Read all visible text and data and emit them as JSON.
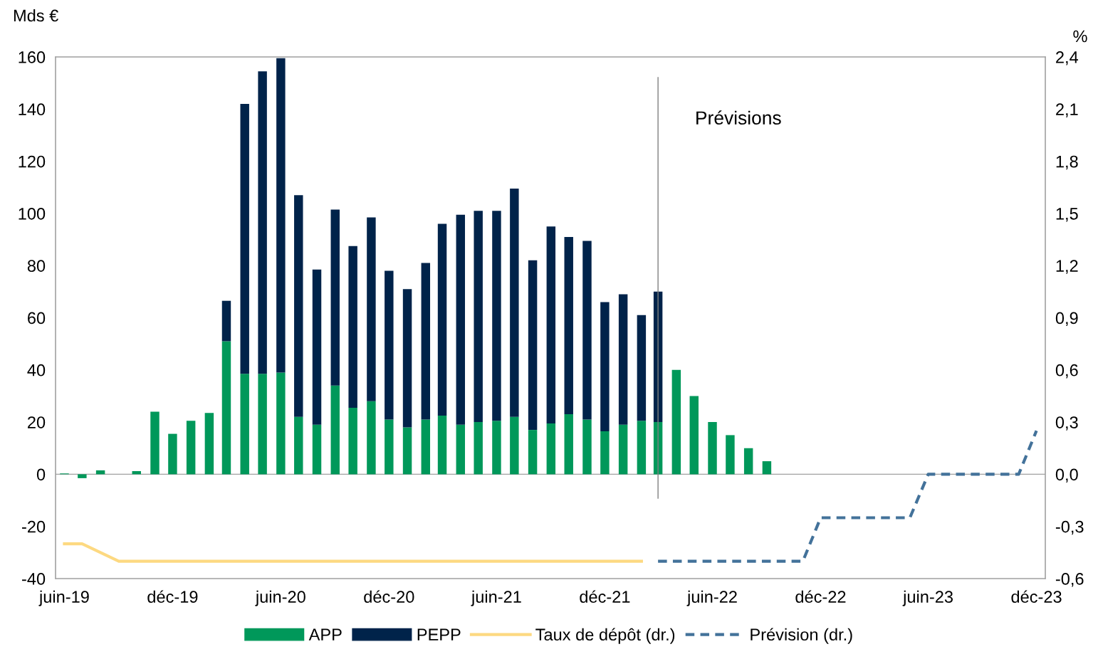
{
  "chart_data": {
    "type": "bar",
    "stacked": true,
    "ylabel": "Mds €",
    "y2label": "%",
    "x": [
      "2019-06",
      "2019-07",
      "2019-08",
      "2019-09",
      "2019-10",
      "2019-11",
      "2019-12",
      "2020-01",
      "2020-02",
      "2020-03",
      "2020-04",
      "2020-05",
      "2020-06",
      "2020-07",
      "2020-08",
      "2020-09",
      "2020-10",
      "2020-11",
      "2020-12",
      "2021-01",
      "2021-02",
      "2021-03",
      "2021-04",
      "2021-05",
      "2021-06",
      "2021-07",
      "2021-08",
      "2021-09",
      "2021-10",
      "2021-11",
      "2021-12",
      "2022-01",
      "2022-02",
      "2022-03",
      "2022-04",
      "2022-05",
      "2022-06",
      "2022-07",
      "2022-08",
      "2022-09"
    ],
    "series": [
      {
        "name": "APP",
        "color": "#00985a",
        "values": [
          0.3,
          -1.5,
          1.5,
          0,
          1.2,
          24,
          15.5,
          20.5,
          23.5,
          51,
          38.5,
          38.5,
          39,
          22,
          19,
          34,
          25.5,
          28,
          21,
          18,
          21,
          22.5,
          19,
          20,
          20.5,
          22,
          17,
          19.5,
          23,
          21,
          16.5,
          19,
          20.5,
          20,
          40,
          30,
          20,
          15,
          10,
          5
        ]
      },
      {
        "name": "PEPP",
        "color": "#00234a",
        "values": [
          null,
          null,
          null,
          null,
          null,
          null,
          null,
          null,
          null,
          15.5,
          103.5,
          116,
          120.5,
          85,
          59.5,
          67.5,
          62,
          70.5,
          57,
          53,
          60,
          73.5,
          80.5,
          81,
          80.5,
          87.5,
          65,
          75.5,
          68,
          68.5,
          49.5,
          50,
          40.5,
          50,
          null,
          null,
          null,
          null,
          null,
          null
        ]
      },
      {
        "name": "Taux de dépôt (dr.)",
        "type": "line",
        "axis": "y2",
        "color": "#fdd981",
        "line_style": "solid",
        "x": [
          "2019-06",
          "2019-07",
          "2019-09",
          "2022-02"
        ],
        "values": [
          -0.4,
          -0.4,
          -0.5,
          -0.5
        ]
      },
      {
        "name": "Prévision (dr.)",
        "type": "line",
        "axis": "y2",
        "color": "#43729a",
        "line_style": "dashed",
        "x": [
          "2022-03",
          "2022-11",
          "2022-12",
          "2023-05",
          "2023-06",
          "2023-11",
          "2023-12"
        ],
        "values": [
          -0.5,
          -0.5,
          -0.25,
          -0.25,
          0,
          0,
          0.25
        ]
      }
    ],
    "xlim": [
      "2019-05-17",
      "2023-12-16"
    ],
    "xticks": [
      {
        "value": "2019-06",
        "label": "juin-19"
      },
      {
        "value": "2019-12",
        "label": "déc-19"
      },
      {
        "value": "2020-06",
        "label": "juin-20"
      },
      {
        "value": "2020-12",
        "label": "déc-20"
      },
      {
        "value": "2021-06",
        "label": "juin-21"
      },
      {
        "value": "2021-12",
        "label": "déc-21"
      },
      {
        "value": "2022-06",
        "label": "juin-22"
      },
      {
        "value": "2022-12",
        "label": "déc-22"
      },
      {
        "value": "2023-06",
        "label": "juin-23"
      },
      {
        "value": "2023-12",
        "label": "déc-23"
      }
    ],
    "ylim": [
      -40,
      160
    ],
    "yticks": [
      -40,
      -20,
      0,
      20,
      40,
      60,
      80,
      100,
      120,
      140,
      160
    ],
    "y2lim": [
      -0.6,
      2.4
    ],
    "y2ticks": [
      {
        "value": -0.6,
        "label": "-0,6"
      },
      {
        "value": -0.3,
        "label": "-0,3"
      },
      {
        "value": 0,
        "label": "0,0"
      },
      {
        "value": 0.3,
        "label": "0,3"
      },
      {
        "value": 0.6,
        "label": "0,6"
      },
      {
        "value": 0.9,
        "label": "0,9"
      },
      {
        "value": 1.2,
        "label": "1,2"
      },
      {
        "value": 1.5,
        "label": "1,5"
      },
      {
        "value": 1.8,
        "label": "1,8"
      },
      {
        "value": 2.1,
        "label": "2,1"
      },
      {
        "value": 2.4,
        "label": "2,4"
      }
    ],
    "ref_lines": [
      {
        "axis": "x",
        "value": "2022-03",
        "color": "#808080",
        "line_style": "solid"
      }
    ],
    "annotations": [
      "Prévisions"
    ],
    "legend": "bottom"
  }
}
